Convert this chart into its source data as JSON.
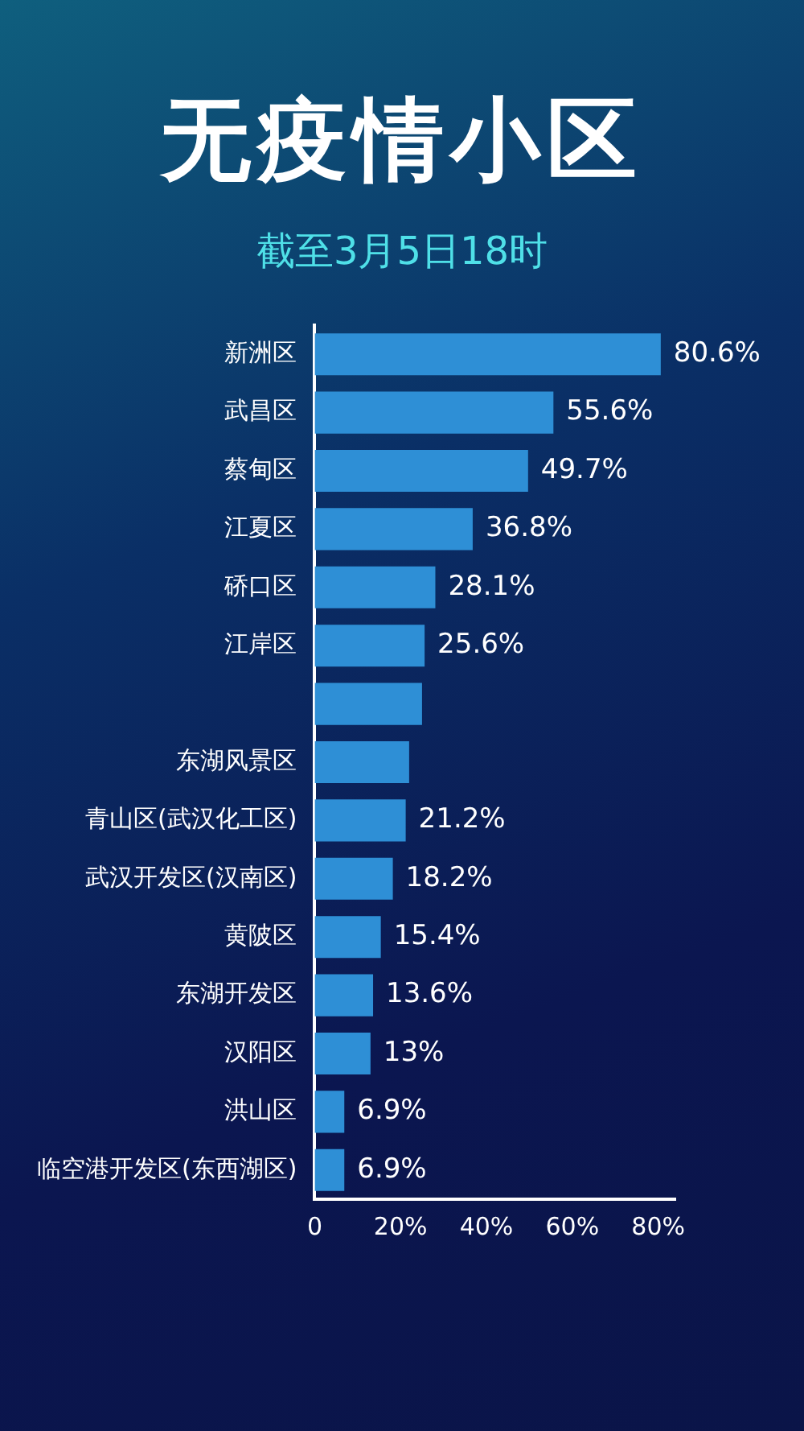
{
  "chart_data": {
    "type": "bar",
    "orientation": "horizontal",
    "title": "无疫情小区",
    "subtitle": "截至3月5日18时",
    "categories": [
      "新洲区",
      "武昌区",
      "蔡甸区",
      "江夏区",
      "硚口区",
      "江岸区",
      null,
      "东湖风景区",
      "青山区(武汉化工区)",
      "武汉开发区(汉南区)",
      "黄陂区",
      "东湖开发区",
      "汉阳区",
      "洪山区",
      "临空港开发区(东西湖区)"
    ],
    "values": [
      80.6,
      55.6,
      49.7,
      36.8,
      28.1,
      25.6,
      25,
      22,
      21.2,
      18.2,
      15.4,
      13.6,
      13,
      6.9,
      6.9
    ],
    "value_labels": [
      "80.6%",
      "55.6%",
      "49.7%",
      "36.8%",
      "28.1%",
      "25.6%",
      null,
      null,
      "21.2%",
      "18.2%",
      "15.4%",
      "13.6%",
      "13%",
      "6.9%",
      "6.9%"
    ],
    "color": "#2e8fd6",
    "xlim": [
      0,
      84
    ],
    "xticks": [
      {
        "value": 0,
        "label": "0"
      },
      {
        "value": 20,
        "label": "20%"
      },
      {
        "value": 40,
        "label": "40%"
      },
      {
        "value": 60,
        "label": "60%"
      },
      {
        "value": 80,
        "label": "80%"
      }
    ],
    "grid": false,
    "legend": false
  }
}
